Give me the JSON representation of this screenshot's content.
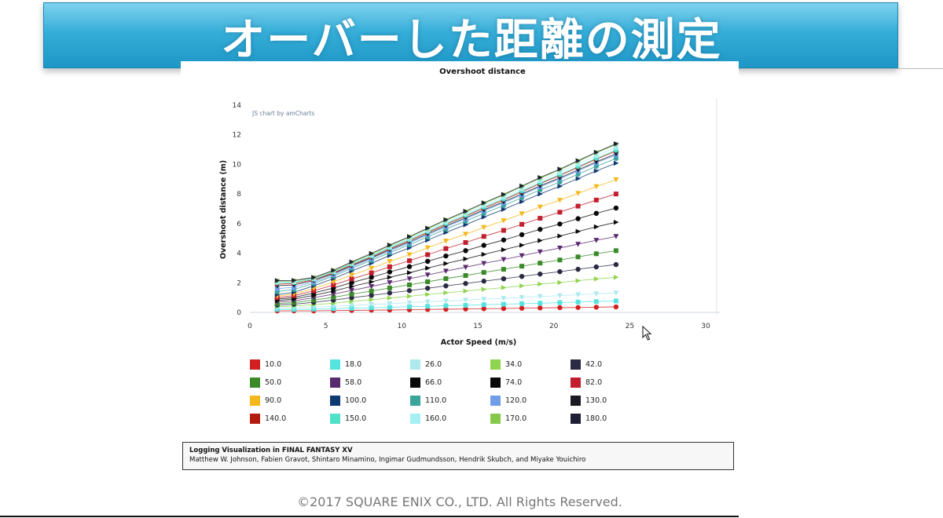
{
  "slide": {
    "title": "オーバーした距離の測定",
    "copyright": "©2017 SQUARE ENIX CO., LTD. All Rights Reserved."
  },
  "citation": {
    "title": "Logging Visualization in FINAL FANTASY XV",
    "authors": "Matthew W. Johnson, Fabien Gravot, Shintaro Minamino, Ingimar Gudmundsson, Hendrik Skubch, and Miyake Youichiro"
  },
  "chart_data": {
    "type": "scatter",
    "title": "Overshoot distance",
    "credit": "JS chart by amCharts",
    "xlabel": "Actor Speed (m/s)",
    "ylabel": "Overshoot distance (m)",
    "xlim": [
      0,
      30
    ],
    "ylim": [
      0,
      14
    ],
    "xticks": [
      0,
      5,
      10,
      15,
      20,
      25,
      30
    ],
    "yticks": [
      0,
      2,
      4,
      6,
      8,
      10,
      12,
      14
    ],
    "x": [
      1.8,
      2.9,
      4.2,
      5.5,
      6.7,
      8.0,
      9.2,
      10.5,
      11.7,
      12.9,
      14.2,
      15.4,
      16.7,
      17.9,
      19.1,
      20.4,
      21.6,
      22.8,
      24.1
    ],
    "legend_position": "bottom",
    "series": [
      {
        "name": "10.0",
        "color": "#d21f1f",
        "marker": "square",
        "values": [
          0.1,
          0.1,
          0.1,
          0.12,
          0.13,
          0.15,
          0.16,
          0.18,
          0.2,
          0.21,
          0.23,
          0.25,
          0.26,
          0.28,
          0.3,
          0.32,
          0.33,
          0.35,
          0.37
        ]
      },
      {
        "name": "18.0",
        "color": "#56e3e0",
        "marker": "square",
        "values": [
          0.2,
          0.2,
          0.22,
          0.25,
          0.28,
          0.31,
          0.34,
          0.38,
          0.41,
          0.45,
          0.48,
          0.52,
          0.55,
          0.59,
          0.62,
          0.66,
          0.7,
          0.73,
          0.77
        ]
      },
      {
        "name": "26.0",
        "color": "#aee9ee",
        "marker": "square",
        "values": [
          0.3,
          0.32,
          0.36,
          0.41,
          0.47,
          0.53,
          0.59,
          0.65,
          0.71,
          0.77,
          0.83,
          0.89,
          0.95,
          1.01,
          1.07,
          1.13,
          1.19,
          1.25,
          1.31
        ]
      },
      {
        "name": "34.0",
        "color": "#8fd44f",
        "marker": "square",
        "values": [
          0.4,
          0.43,
          0.52,
          0.62,
          0.74,
          0.86,
          0.97,
          1.09,
          1.21,
          1.32,
          1.44,
          1.56,
          1.67,
          1.79,
          1.91,
          2.02,
          2.14,
          2.26,
          2.37
        ]
      },
      {
        "name": "42.0",
        "color": "#2a2a44",
        "marker": "square",
        "values": [
          0.5,
          0.55,
          0.68,
          0.83,
          0.99,
          1.15,
          1.31,
          1.47,
          1.63,
          1.79,
          1.95,
          2.11,
          2.27,
          2.43,
          2.59,
          2.75,
          2.91,
          3.07,
          3.23
        ]
      },
      {
        "name": "50.0",
        "color": "#3b8a2a",
        "marker": "square",
        "values": [
          0.6,
          0.66,
          0.83,
          1.02,
          1.23,
          1.44,
          1.65,
          1.86,
          2.07,
          2.28,
          2.49,
          2.7,
          2.91,
          3.12,
          3.33,
          3.54,
          3.75,
          3.96,
          4.17
        ]
      },
      {
        "name": "58.0",
        "color": "#5a2a6e",
        "marker": "square",
        "values": [
          0.7,
          0.78,
          0.99,
          1.23,
          1.49,
          1.75,
          2.01,
          2.27,
          2.53,
          2.79,
          3.05,
          3.31,
          3.57,
          3.83,
          4.09,
          4.35,
          4.61,
          4.87,
          5.13
        ]
      },
      {
        "name": "66.0",
        "color": "#0a0a0a",
        "marker": "square",
        "values": [
          0.8,
          0.9,
          1.15,
          1.44,
          1.75,
          2.06,
          2.37,
          2.68,
          2.99,
          3.3,
          3.61,
          3.92,
          4.23,
          4.54,
          4.85,
          5.16,
          5.47,
          5.78,
          6.09
        ]
      },
      {
        "name": "74.0",
        "color": "#0a0a0a",
        "marker": "square",
        "values": [
          0.9,
          1.01,
          1.31,
          1.65,
          2.01,
          2.37,
          2.73,
          3.09,
          3.45,
          3.81,
          4.17,
          4.53,
          4.89,
          5.25,
          5.61,
          5.97,
          6.33,
          6.69,
          7.05
        ]
      },
      {
        "name": "82.0",
        "color": "#c21e2e",
        "marker": "square",
        "values": [
          1.0,
          1.13,
          1.46,
          1.85,
          2.26,
          2.67,
          3.08,
          3.49,
          3.9,
          4.31,
          4.72,
          5.13,
          5.54,
          5.95,
          6.36,
          6.77,
          7.18,
          7.59,
          8.0
        ]
      },
      {
        "name": "90.0",
        "color": "#f5b81c",
        "marker": "square",
        "values": [
          1.1,
          1.24,
          1.62,
          2.06,
          2.52,
          2.98,
          3.44,
          3.9,
          4.36,
          4.82,
          5.28,
          5.74,
          6.2,
          6.66,
          7.12,
          7.58,
          8.04,
          8.5,
          8.96
        ]
      },
      {
        "name": "100.0",
        "color": "#0e3a72",
        "marker": "square",
        "values": [
          1.2,
          1.36,
          1.79,
          2.28,
          2.8,
          3.32,
          3.84,
          4.36,
          4.88,
          5.4,
          5.92,
          6.44,
          6.96,
          7.48,
          8.0,
          8.52,
          9.04,
          9.56,
          10.08
        ]
      },
      {
        "name": "110.0",
        "color": "#3aa59a",
        "marker": "square",
        "values": [
          1.4,
          1.55,
          1.95,
          2.45,
          2.98,
          3.51,
          4.04,
          4.57,
          5.1,
          5.63,
          6.16,
          6.69,
          7.22,
          7.75,
          8.28,
          8.81,
          9.34,
          9.87,
          10.4
        ]
      },
      {
        "name": "120.0",
        "color": "#6f9de8",
        "marker": "square",
        "values": [
          1.6,
          1.7,
          2.05,
          2.55,
          3.08,
          3.62,
          4.16,
          4.7,
          5.24,
          5.78,
          6.32,
          6.86,
          7.4,
          7.94,
          8.48,
          9.02,
          9.56,
          10.1,
          10.64
        ]
      },
      {
        "name": "130.0",
        "color": "#1a1a22",
        "marker": "square",
        "values": [
          1.8,
          1.85,
          2.15,
          2.62,
          3.15,
          3.69,
          4.23,
          4.77,
          5.31,
          5.85,
          6.39,
          6.93,
          7.47,
          8.01,
          8.55,
          9.09,
          9.63,
          10.17,
          10.71
        ]
      },
      {
        "name": "140.0",
        "color": "#b51c10",
        "marker": "square",
        "values": [
          1.9,
          1.95,
          2.2,
          2.67,
          3.2,
          3.75,
          4.3,
          4.85,
          5.4,
          5.95,
          6.5,
          7.05,
          7.6,
          8.15,
          8.7,
          9.25,
          9.8,
          10.35,
          10.9
        ]
      },
      {
        "name": "150.0",
        "color": "#4fe0c8",
        "marker": "square",
        "values": [
          2.0,
          2.02,
          2.25,
          2.72,
          3.26,
          3.81,
          4.36,
          4.91,
          5.46,
          6.01,
          6.56,
          7.11,
          7.66,
          8.21,
          8.76,
          9.31,
          9.86,
          10.41,
          10.96
        ]
      },
      {
        "name": "160.0",
        "color": "#a5f0f2",
        "marker": "square",
        "values": [
          2.05,
          2.07,
          2.29,
          2.76,
          3.31,
          3.87,
          4.43,
          4.99,
          5.55,
          6.11,
          6.67,
          7.23,
          7.79,
          8.35,
          8.91,
          9.47,
          10.03,
          10.59,
          11.15
        ]
      },
      {
        "name": "170.0",
        "color": "#86c94a",
        "marker": "square",
        "values": [
          2.1,
          2.12,
          2.33,
          2.8,
          3.36,
          3.93,
          4.5,
          5.07,
          5.64,
          6.21,
          6.78,
          7.35,
          7.92,
          8.49,
          9.06,
          9.63,
          10.2,
          10.77,
          11.34
        ]
      },
      {
        "name": "180.0",
        "color": "#1f1f33",
        "marker": "square",
        "values": [
          2.15,
          2.16,
          2.36,
          2.84,
          3.41,
          3.98,
          4.55,
          5.12,
          5.69,
          6.26,
          6.83,
          7.4,
          7.97,
          8.54,
          9.11,
          9.68,
          10.25,
          10.82,
          11.39
        ]
      }
    ]
  }
}
